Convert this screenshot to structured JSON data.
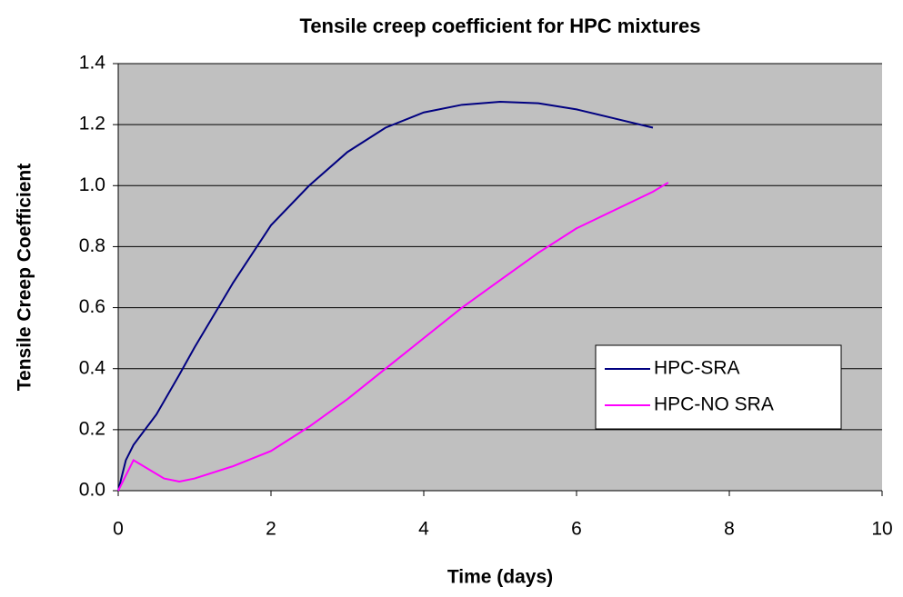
{
  "chart_data": {
    "type": "line",
    "title": "Tensile creep coefficient for HPC mixtures",
    "x_label": "Time (days)",
    "y_label": "Tensile Creep Coefficient",
    "xlim": [
      0,
      10
    ],
    "xticks": [
      0,
      2,
      4,
      6,
      8,
      10
    ],
    "ylim": [
      0,
      1.4
    ],
    "yticks": [
      {
        "value": 0,
        "label": "0.0"
      },
      0.2,
      0.4,
      0.6,
      0.8,
      {
        "value": 1,
        "label": "1.0"
      },
      1.2,
      1.4
    ],
    "grid": true,
    "legend": "right",
    "series": [
      {
        "name": "HPC-SRA",
        "color": "#000080",
        "x": [
          0,
          0.1,
          0.2,
          0.5,
          0.8,
          1.0,
          1.5,
          2.0,
          2.5,
          3.0,
          3.5,
          4.0,
          4.5,
          5.0,
          5.5,
          6.0,
          6.5,
          7.0
        ],
        "values": [
          0,
          0.1,
          0.15,
          0.25,
          0.38,
          0.47,
          0.68,
          0.87,
          1.0,
          1.11,
          1.19,
          1.24,
          1.265,
          1.275,
          1.27,
          1.25,
          1.22,
          1.19
        ]
      },
      {
        "name": "HPC-NO SRA",
        "color": "#FF00FF",
        "x": [
          0,
          0.1,
          0.2,
          0.4,
          0.6,
          0.8,
          1.0,
          1.5,
          2.0,
          2.5,
          3.0,
          3.5,
          4.0,
          4.5,
          5.0,
          5.5,
          6.0,
          6.5,
          7.0,
          7.2
        ],
        "values": [
          0,
          0.05,
          0.1,
          0.07,
          0.04,
          0.03,
          0.04,
          0.08,
          0.13,
          0.21,
          0.3,
          0.4,
          0.5,
          0.6,
          0.69,
          0.78,
          0.86,
          0.92,
          0.98,
          1.01
        ]
      }
    ]
  }
}
